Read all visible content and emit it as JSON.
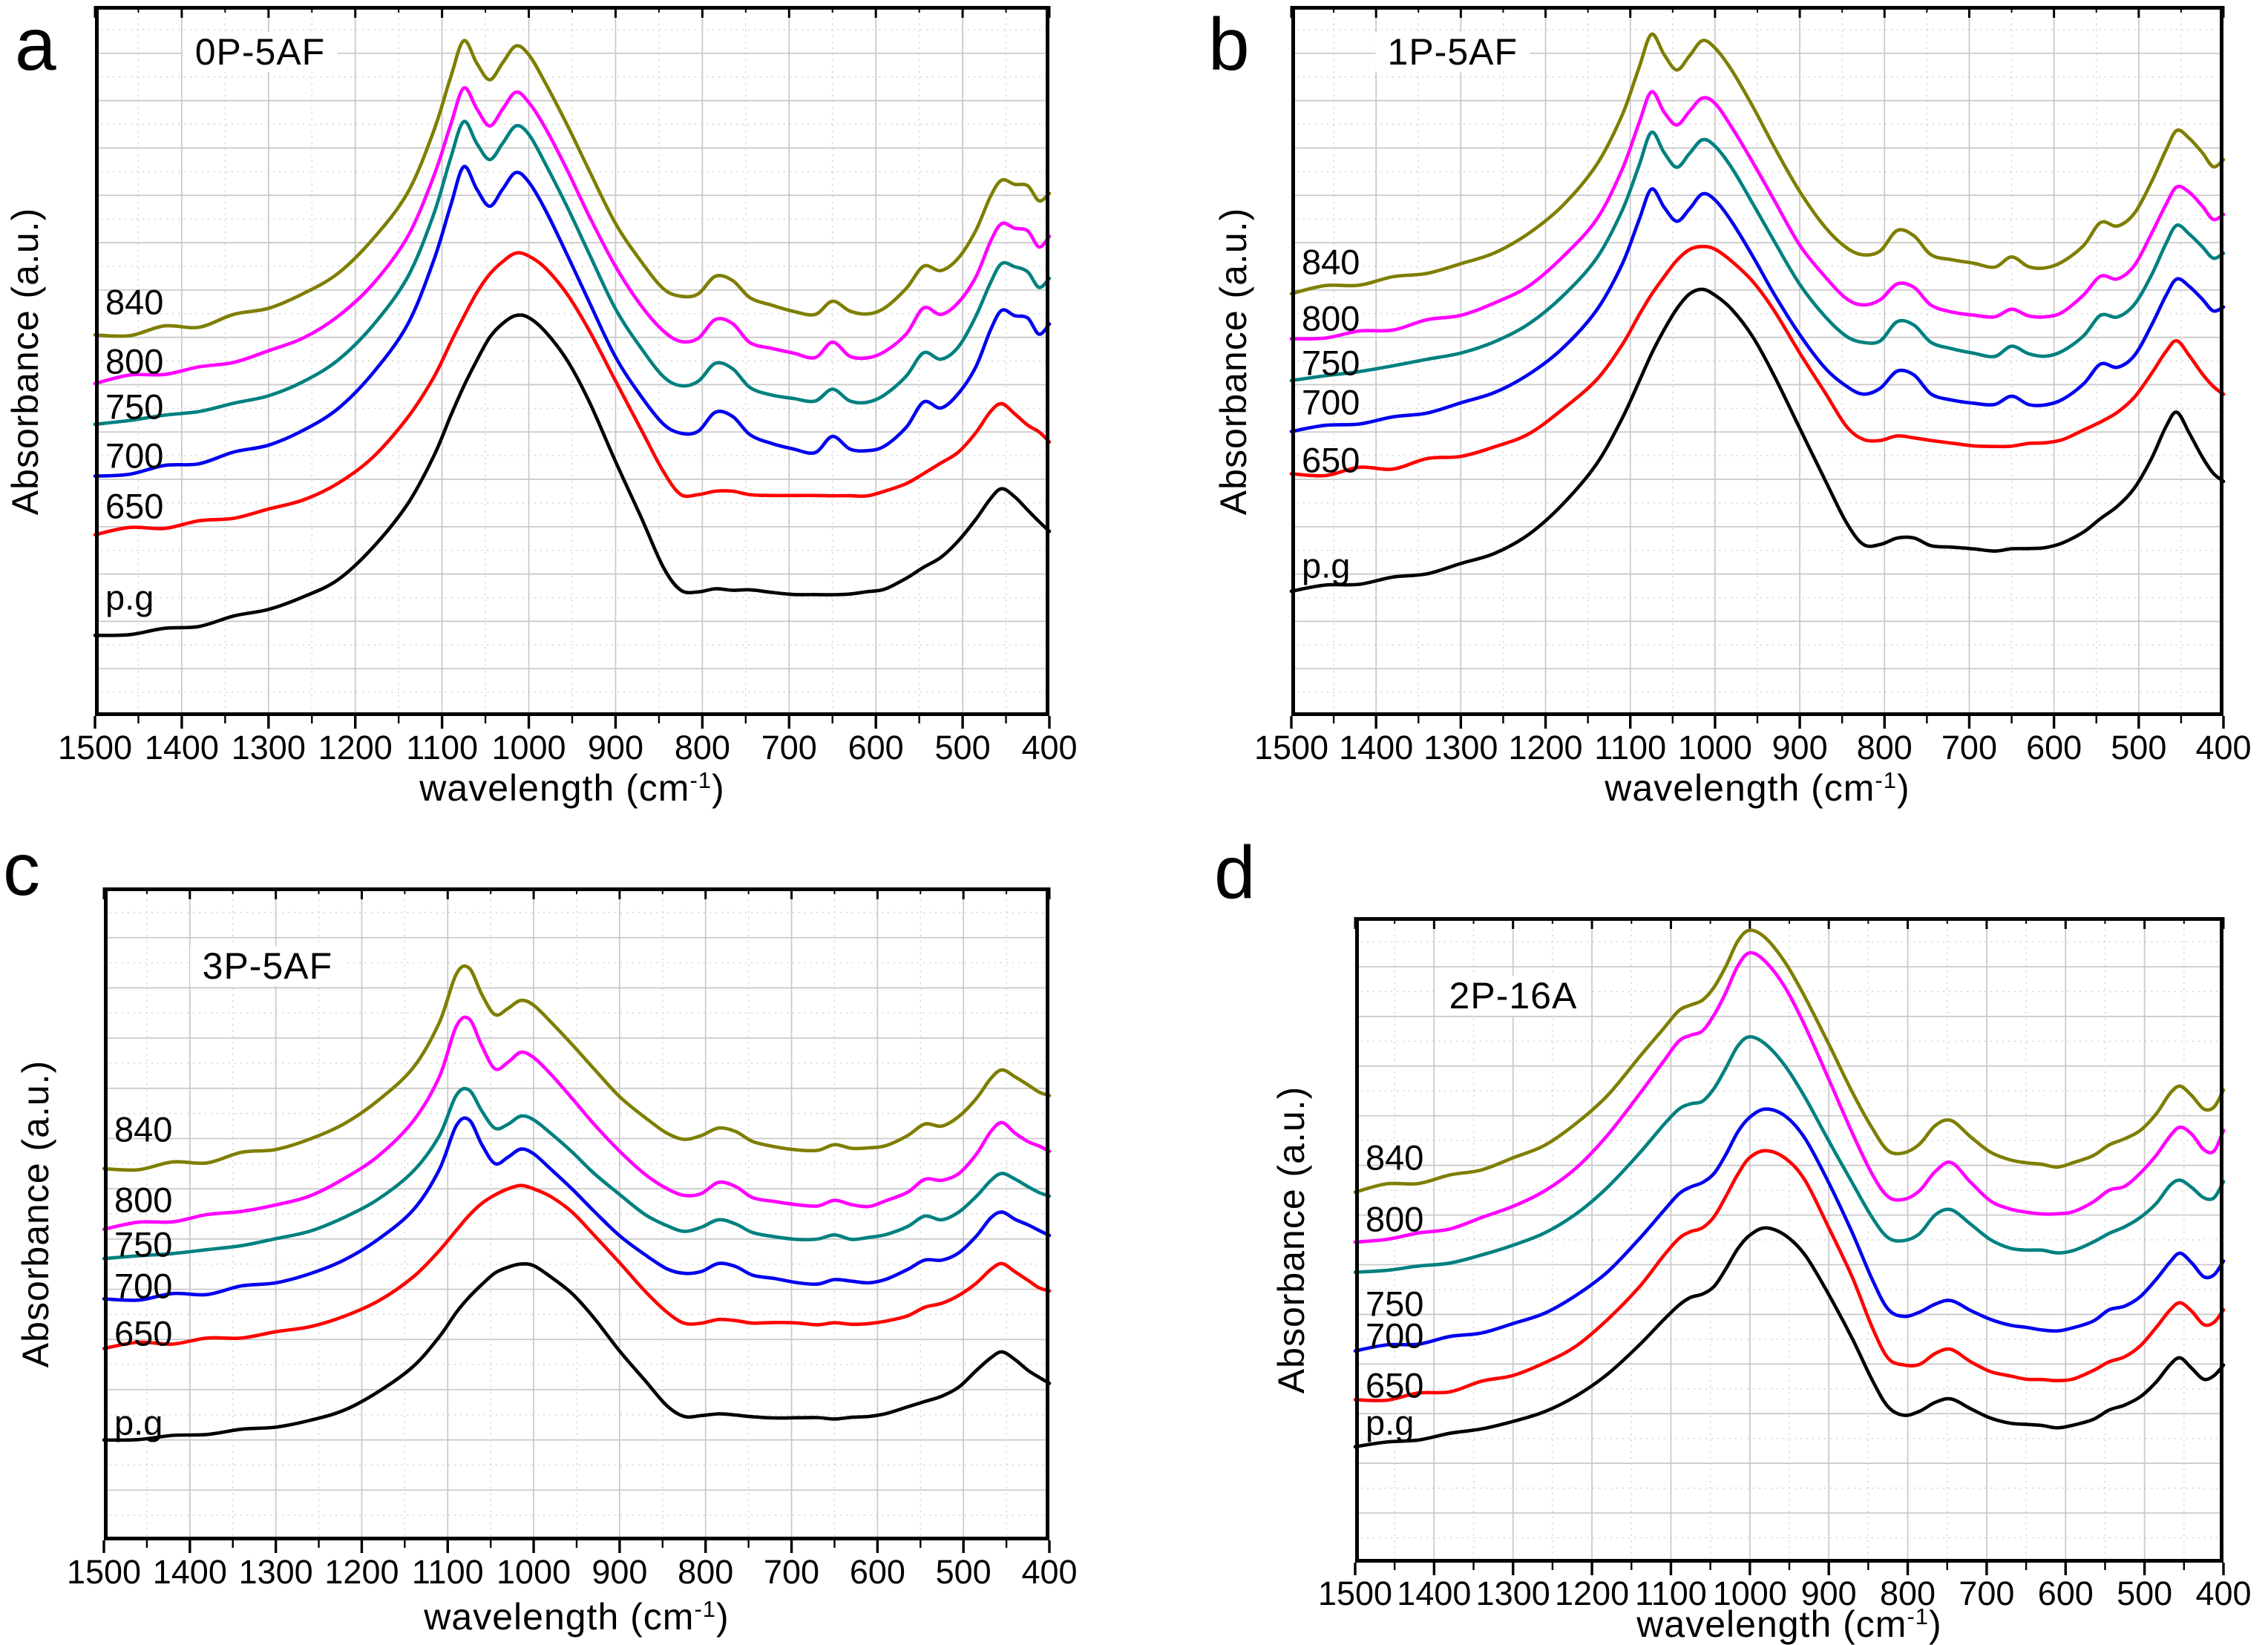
{
  "figure": {
    "ylabel": "Absorbance (a.u.)",
    "xlabel_main": "wavelength (cm",
    "xlabel_sup": "-1",
    "xlabel_close": ")",
    "x_range": [
      1500,
      400
    ],
    "xticks": [
      "1500",
      "1400",
      "1300",
      "1200",
      "1100",
      "1000",
      "900",
      "800",
      "700",
      "600",
      "500",
      "400"
    ],
    "grid": {
      "x_major_step": 100,
      "x_minor_step": 50,
      "major_color": "#c8c8c8",
      "minor_color": "#d2d2d2"
    },
    "axis_color": "#000000",
    "background_color": "#ffffff"
  },
  "chart_data": [
    {
      "type": "line",
      "letter": "a",
      "title": "0P-5AF",
      "xlabel": "wavelength (cm-1)",
      "ylabel": "Absorbance (a.u.)",
      "x_range": [
        1500,
        400
      ],
      "y_units": "a.u.",
      "y_divisions": 15,
      "series": [
        {
          "label": "840",
          "color": "#7e7e00",
          "shape": "aU",
          "offset": 52.4,
          "amp": 42.6,
          "label_y": 58.3
        },
        {
          "label": "800",
          "color": "#ff00ff",
          "shape": "aU",
          "offset": 46.4,
          "amp": 42.0,
          "label_y": 49.9
        },
        {
          "label": "750",
          "color": "#008080",
          "shape": "aU",
          "offset": 39.8,
          "amp": 44.0,
          "label_y": 43.6
        },
        {
          "label": "700",
          "color": "#0000ee",
          "shape": "aU",
          "offset": 32.8,
          "amp": 44.5,
          "label_y": 36.7
        },
        {
          "label": "650",
          "color": "#ff0000",
          "shape": "aL",
          "offset": 25.1,
          "amp": 40.0,
          "label_y": 29.6
        },
        {
          "label": "p.g",
          "color": "#000000",
          "shape": "aL",
          "offset": 10.5,
          "amp": 46.0,
          "label_y": 16.7
        }
      ]
    },
    {
      "type": "line",
      "letter": "b",
      "title": "1P-5AF",
      "xlabel": "wavelength (cm-1)",
      "ylabel": "Absorbance (a.u.)",
      "x_range": [
        1500,
        400
      ],
      "y_units": "a.u.",
      "y_divisions": 15,
      "series": [
        {
          "label": "840",
          "color": "#7e7e00",
          "shape": "bU",
          "offset": 59.0,
          "amp": 37.0,
          "label_y": 64.0
        },
        {
          "label": "800",
          "color": "#ff00ff",
          "shape": "bU",
          "offset": 52.0,
          "amp": 36.0,
          "label_y": 56.0
        },
        {
          "label": "750",
          "color": "#008080",
          "shape": "bU",
          "offset": 46.6,
          "amp": 35.5,
          "label_y": 49.7
        },
        {
          "label": "700",
          "color": "#0000ee",
          "shape": "bU",
          "offset": 39.8,
          "amp": 34.5,
          "label_y": 44.2
        },
        {
          "label": "650",
          "color": "#ff0000",
          "shape": "bL",
          "offset": 33.2,
          "amp": 33.0,
          "label_y": 36.1
        },
        {
          "label": "p.g",
          "color": "#000000",
          "shape": "bL",
          "offset": 17.0,
          "amp": 43.0,
          "label_y": 21.2
        }
      ]
    },
    {
      "type": "line",
      "letter": "c",
      "title": "3P-5AF",
      "xlabel": "wavelength (cm-1)",
      "ylabel": "Absorbance (a.u.)",
      "x_range": [
        1500,
        400
      ],
      "y_units": "a.u.",
      "y_divisions": 13,
      "series": [
        {
          "label": "840",
          "color": "#7e7e00",
          "shape": "cU",
          "offset": 56.0,
          "amp": 31.7,
          "label_y": 63.0
        },
        {
          "label": "800",
          "color": "#ff00ff",
          "shape": "cU",
          "offset": 47.2,
          "amp": 32.6,
          "label_y": 52.2
        },
        {
          "label": "750",
          "color": "#008080",
          "shape": "cU",
          "offset": 43.0,
          "amp": 26.0,
          "label_y": 45.3
        },
        {
          "label": "700",
          "color": "#0000ee",
          "shape": "cU",
          "offset": 36.0,
          "amp": 28.3,
          "label_y": 39.0
        },
        {
          "label": "650",
          "color": "#ff0000",
          "shape": "cL",
          "offset": 29.3,
          "amp": 25.0,
          "label_y": 31.7
        },
        {
          "label": "p.g",
          "color": "#000000",
          "shape": "cL",
          "offset": 14.4,
          "amp": 28.0,
          "label_y": 18.1
        }
      ]
    },
    {
      "type": "line",
      "letter": "d",
      "title": "2P-16A",
      "xlabel": "wavelength (cm-1)",
      "ylabel": "Absorbance (a.u.)",
      "x_range": [
        1500,
        400
      ],
      "y_units": "a.u.",
      "y_divisions": 13,
      "series": [
        {
          "label": "840",
          "color": "#7e7e00",
          "shape": "dU",
          "offset": 56.9,
          "amp": 41.0,
          "label_y": 62.8
        },
        {
          "label": "800",
          "color": "#ff00ff",
          "shape": "dU",
          "offset": 48.9,
          "amp": 45.5,
          "label_y": 53.2
        },
        {
          "label": "750",
          "color": "#008080",
          "shape": "dU",
          "offset": 44.0,
          "amp": 37.5,
          "label_y": 40.1
        },
        {
          "label": "700",
          "color": "#0000ee",
          "shape": "dL",
          "offset": 32.2,
          "amp": 38.0,
          "label_y": 35.2
        },
        {
          "label": "650",
          "color": "#ff0000",
          "shape": "dL",
          "offset": 24.1,
          "amp": 39.8,
          "label_y": 27.5
        },
        {
          "label": "p.g",
          "color": "#000000",
          "shape": "dL",
          "offset": 17.5,
          "amp": 34.3,
          "label_y": 21.7
        }
      ]
    }
  ],
  "curve_shapes": {
    "shape_x": [
      1500,
      1460,
      1420,
      1380,
      1340,
      1300,
      1260,
      1220,
      1180,
      1140,
      1110,
      1090,
      1075,
      1060,
      1045,
      1030,
      1015,
      1000,
      980,
      955,
      930,
      900,
      870,
      845,
      825,
      805,
      785,
      765,
      745,
      720,
      695,
      670,
      650,
      630,
      610,
      590,
      565,
      545,
      525,
      505,
      485,
      468,
      455,
      440,
      425,
      412,
      400
    ],
    "aU": [
      0.02,
      0.035,
      0.05,
      0.065,
      0.09,
      0.12,
      0.165,
      0.235,
      0.345,
      0.5,
      0.7,
      0.88,
      1.0,
      0.93,
      0.875,
      0.93,
      0.985,
      0.955,
      0.86,
      0.72,
      0.57,
      0.4,
      0.27,
      0.185,
      0.155,
      0.165,
      0.225,
      0.21,
      0.15,
      0.125,
      0.11,
      0.1,
      0.145,
      0.105,
      0.1,
      0.12,
      0.18,
      0.26,
      0.24,
      0.28,
      0.37,
      0.485,
      0.545,
      0.53,
      0.52,
      0.47,
      0.5
    ],
    "aL": [
      0.02,
      0.03,
      0.04,
      0.055,
      0.075,
      0.1,
      0.135,
      0.19,
      0.285,
      0.42,
      0.565,
      0.69,
      0.78,
      0.86,
      0.93,
      0.975,
      1.0,
      0.99,
      0.945,
      0.855,
      0.73,
      0.55,
      0.38,
      0.23,
      0.155,
      0.15,
      0.16,
      0.16,
      0.155,
      0.15,
      0.147,
      0.145,
      0.145,
      0.147,
      0.15,
      0.16,
      0.19,
      0.225,
      0.26,
      0.305,
      0.37,
      0.44,
      0.47,
      0.44,
      0.4,
      0.37,
      0.34
    ],
    "bU": [
      0.02,
      0.035,
      0.05,
      0.07,
      0.095,
      0.125,
      0.17,
      0.24,
      0.35,
      0.5,
      0.69,
      0.87,
      1.0,
      0.92,
      0.865,
      0.92,
      0.975,
      0.95,
      0.86,
      0.72,
      0.57,
      0.4,
      0.27,
      0.19,
      0.165,
      0.18,
      0.25,
      0.235,
      0.165,
      0.14,
      0.125,
      0.115,
      0.15,
      0.12,
      0.115,
      0.135,
      0.2,
      0.28,
      0.27,
      0.32,
      0.44,
      0.56,
      0.63,
      0.6,
      0.55,
      0.5,
      0.52
    ],
    "bL": [
      0.02,
      0.03,
      0.045,
      0.06,
      0.08,
      0.105,
      0.14,
      0.2,
      0.3,
      0.43,
      0.575,
      0.7,
      0.79,
      0.87,
      0.94,
      0.985,
      1.0,
      0.985,
      0.935,
      0.845,
      0.72,
      0.545,
      0.375,
      0.235,
      0.17,
      0.17,
      0.19,
      0.185,
      0.165,
      0.155,
      0.15,
      0.148,
      0.15,
      0.155,
      0.16,
      0.175,
      0.21,
      0.25,
      0.29,
      0.35,
      0.45,
      0.55,
      0.6,
      0.53,
      0.45,
      0.4,
      0.37
    ],
    "cU": [
      0.02,
      0.035,
      0.05,
      0.07,
      0.095,
      0.125,
      0.17,
      0.25,
      0.36,
      0.52,
      0.73,
      0.97,
      1.0,
      0.87,
      0.77,
      0.8,
      0.845,
      0.82,
      0.74,
      0.63,
      0.51,
      0.38,
      0.27,
      0.2,
      0.17,
      0.185,
      0.23,
      0.21,
      0.16,
      0.14,
      0.125,
      0.12,
      0.145,
      0.125,
      0.125,
      0.145,
      0.19,
      0.25,
      0.24,
      0.28,
      0.37,
      0.47,
      0.51,
      0.47,
      0.43,
      0.4,
      0.38
    ],
    "cL": [
      0.02,
      0.03,
      0.045,
      0.06,
      0.08,
      0.105,
      0.14,
      0.2,
      0.3,
      0.44,
      0.6,
      0.73,
      0.82,
      0.89,
      0.945,
      0.98,
      1.0,
      0.985,
      0.93,
      0.835,
      0.7,
      0.525,
      0.355,
      0.225,
      0.165,
      0.165,
      0.18,
      0.175,
      0.165,
      0.16,
      0.155,
      0.152,
      0.155,
      0.158,
      0.162,
      0.175,
      0.21,
      0.25,
      0.28,
      0.33,
      0.41,
      0.49,
      0.52,
      0.47,
      0.42,
      0.38,
      0.35
    ],
    "dU": [
      0.02,
      0.035,
      0.05,
      0.07,
      0.1,
      0.14,
      0.19,
      0.27,
      0.38,
      0.52,
      0.63,
      0.7,
      0.72,
      0.735,
      0.79,
      0.87,
      0.96,
      1.0,
      0.97,
      0.88,
      0.75,
      0.57,
      0.39,
      0.25,
      0.17,
      0.16,
      0.19,
      0.26,
      0.285,
      0.22,
      0.16,
      0.13,
      0.12,
      0.115,
      0.11,
      0.12,
      0.15,
      0.19,
      0.21,
      0.25,
      0.31,
      0.38,
      0.41,
      0.38,
      0.33,
      0.33,
      0.4
    ],
    "dL": [
      0.02,
      0.03,
      0.045,
      0.065,
      0.09,
      0.125,
      0.17,
      0.24,
      0.34,
      0.47,
      0.585,
      0.655,
      0.685,
      0.7,
      0.74,
      0.82,
      0.91,
      0.97,
      1.0,
      0.97,
      0.88,
      0.7,
      0.5,
      0.31,
      0.19,
      0.16,
      0.17,
      0.21,
      0.225,
      0.18,
      0.14,
      0.12,
      0.11,
      0.105,
      0.1,
      0.11,
      0.14,
      0.18,
      0.2,
      0.24,
      0.31,
      0.38,
      0.41,
      0.37,
      0.32,
      0.33,
      0.38
    ]
  }
}
